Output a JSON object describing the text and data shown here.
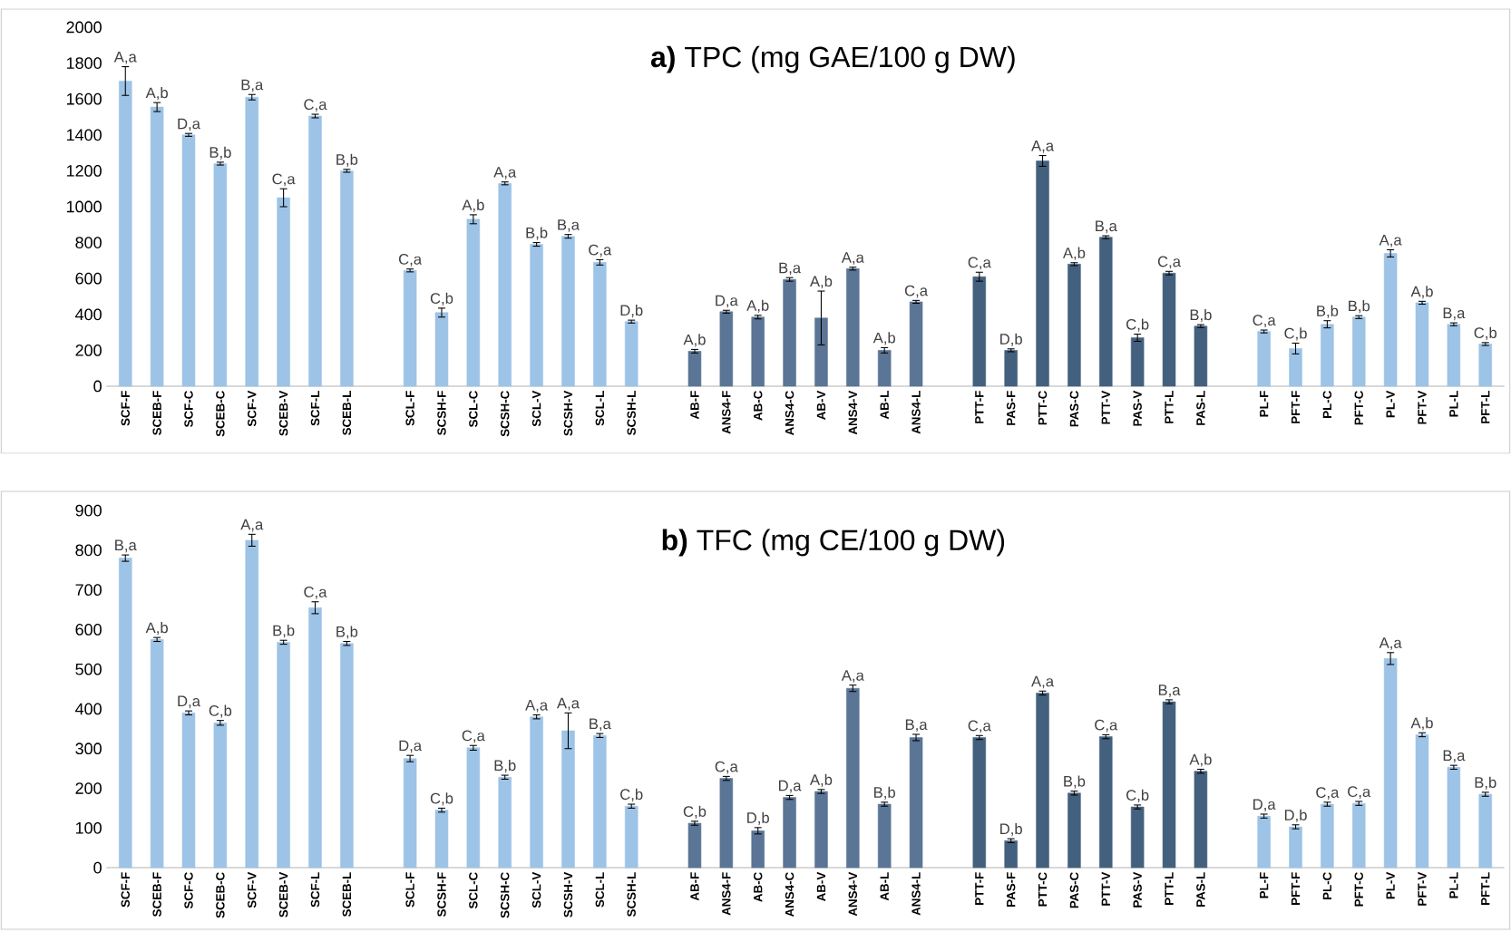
{
  "chart_data": [
    {
      "type": "bar",
      "title": "**a)** TPC (mg GAE/100 g DW)",
      "categories": [
        "SCF-F",
        "SCEB-F",
        "SCF-C",
        "SCEB-C",
        "SCF-V",
        "SCEB-V",
        "SCF-L",
        "SCEB-L",
        null,
        "SCL-F",
        "SCSH-F",
        "SCL-C",
        "SCSH-C",
        "SCL-V",
        "SCSH-V",
        "SCL-L",
        "SCSH-L",
        null,
        "AB-F",
        "ANS4-F",
        "AB-C",
        "ANS4-C",
        "AB-V",
        "ANS4-V",
        "AB-L",
        "ANS4-L",
        null,
        "PTT-F",
        "PAS-F",
        "PTT-C",
        "PAS-C",
        "PTT-V",
        "PAS-V",
        "PTT-L",
        "PAS-L",
        null,
        "PL-F",
        "PFT-F",
        "PL-C",
        "PFT-C",
        "PL-V",
        "PFT-V",
        "PL-L",
        "PFT-L"
      ],
      "values": [
        1700,
        1555,
        1400,
        1240,
        1610,
        1050,
        1505,
        1200,
        null,
        645,
        410,
        930,
        1130,
        790,
        835,
        690,
        360,
        null,
        195,
        415,
        385,
        595,
        380,
        655,
        200,
        470,
        null,
        610,
        200,
        1255,
        680,
        830,
        270,
        630,
        335,
        null,
        305,
        210,
        345,
        385,
        740,
        465,
        345,
        235
      ],
      "errors": [
        80,
        25,
        8,
        8,
        15,
        50,
        10,
        8,
        null,
        8,
        25,
        25,
        8,
        10,
        10,
        15,
        8,
        null,
        10,
        8,
        10,
        10,
        150,
        8,
        15,
        8,
        null,
        25,
        8,
        30,
        8,
        8,
        20,
        10,
        8,
        null,
        8,
        30,
        20,
        8,
        20,
        8,
        8,
        8
      ],
      "value_labels": [
        "A,a",
        "A,b",
        "D,a",
        "B,b",
        "B,a",
        "C,a",
        "C,a",
        "B,b",
        null,
        "C,a",
        "C,b",
        "A,b",
        "A,a",
        "B,b",
        "B,a",
        "C,a",
        "D,b",
        null,
        "A,b",
        "D,a",
        "A,b",
        "B,a",
        "A,b",
        "A,a",
        "A,b",
        "C,a",
        null,
        "C,a",
        "D,b",
        "A,a",
        "A,b",
        "B,a",
        "C,b",
        "C,a",
        "B,b",
        null,
        "C,a",
        "C,b",
        "B,b",
        "B,b",
        "A,a",
        "A,b",
        "B,a",
        "C,b"
      ],
      "colors": [
        "#9dc3e6",
        "#9dc3e6",
        "#9dc3e6",
        "#9dc3e6",
        "#9dc3e6",
        "#9dc3e6",
        "#9dc3e6",
        "#9dc3e6",
        null,
        "#9dc3e6",
        "#9dc3e6",
        "#9dc3e6",
        "#9dc3e6",
        "#9dc3e6",
        "#9dc3e6",
        "#9dc3e6",
        "#9dc3e6",
        null,
        "#5a7595",
        "#5a7595",
        "#5a7595",
        "#5a7595",
        "#5a7595",
        "#5a7595",
        "#5a7595",
        "#5a7595",
        null,
        "#44607f",
        "#44607f",
        "#44607f",
        "#44607f",
        "#44607f",
        "#44607f",
        "#44607f",
        "#44607f",
        null,
        "#9dc3e6",
        "#9dc3e6",
        "#9dc3e6",
        "#9dc3e6",
        "#9dc3e6",
        "#9dc3e6",
        "#9dc3e6",
        "#9dc3e6"
      ],
      "ylim": [
        0,
        2000
      ],
      "yticks": [
        0,
        200,
        400,
        600,
        800,
        1000,
        1200,
        1400,
        1600,
        1800,
        2000
      ]
    },
    {
      "type": "bar",
      "title": "**b)** TFC (mg CE/100 g DW)",
      "categories": [
        "SCF-F",
        "SCEB-F",
        "SCF-C",
        "SCEB-C",
        "SCF-V",
        "SCEB-V",
        "SCF-L",
        "SCEB-L",
        null,
        "SCL-F",
        "SCSH-F",
        "SCL-C",
        "SCSH-C",
        "SCL-V",
        "SCSH-V",
        "SCL-L",
        "SCSH-L",
        null,
        "AB-F",
        "ANS4-F",
        "AB-C",
        "ANS4-C",
        "AB-V",
        "ANS4-V",
        "AB-L",
        "ANS4-L",
        null,
        "PTT-F",
        "PAS-F",
        "PTT-C",
        "PAS-C",
        "PTT-V",
        "PAS-V",
        "PTT-L",
        "PAS-L",
        null,
        "PL-F",
        "PFT-F",
        "PL-C",
        "PFT-C",
        "PL-V",
        "PFT-V",
        "PL-L",
        "PFT-L"
      ],
      "values": [
        780,
        575,
        390,
        365,
        825,
        568,
        655,
        565,
        null,
        275,
        145,
        302,
        228,
        380,
        345,
        333,
        155,
        null,
        112,
        225,
        93,
        177,
        192,
        452,
        160,
        328,
        null,
        328,
        68,
        440,
        188,
        330,
        153,
        418,
        243,
        null,
        130,
        103,
        160,
        162,
        527,
        335,
        253,
        185
      ],
      "errors": [
        8,
        5,
        5,
        6,
        15,
        5,
        15,
        5,
        null,
        8,
        5,
        6,
        5,
        5,
        45,
        5,
        5,
        null,
        5,
        5,
        8,
        5,
        5,
        8,
        5,
        8,
        null,
        5,
        5,
        5,
        5,
        5,
        5,
        5,
        5,
        null,
        5,
        5,
        5,
        5,
        15,
        5,
        5,
        5
      ],
      "value_labels": [
        "B,a",
        "A,b",
        "D,a",
        "C,b",
        "A,a",
        "B,b",
        "C,a",
        "B,b",
        null,
        "D,a",
        "C,b",
        "C,a",
        "B,b",
        "A,a",
        "A,a",
        "B,a",
        "C,b",
        null,
        "C,b",
        "C,a",
        "D,b",
        "D,a",
        "A,b",
        "A,a",
        "B,b",
        "B,a",
        null,
        "C,a",
        "D,b",
        "A,a",
        "B,b",
        "C,a",
        "C,b",
        "B,a",
        "A,b",
        null,
        "D,a",
        "D,b",
        "C,a",
        "C,a",
        "A,a",
        "A,b",
        "B,a",
        "B,b"
      ],
      "colors": [
        "#9dc3e6",
        "#9dc3e6",
        "#9dc3e6",
        "#9dc3e6",
        "#9dc3e6",
        "#9dc3e6",
        "#9dc3e6",
        "#9dc3e6",
        null,
        "#9dc3e6",
        "#9dc3e6",
        "#9dc3e6",
        "#9dc3e6",
        "#9dc3e6",
        "#9dc3e6",
        "#9dc3e6",
        "#9dc3e6",
        null,
        "#5a7595",
        "#5a7595",
        "#5a7595",
        "#5a7595",
        "#5a7595",
        "#5a7595",
        "#5a7595",
        "#5a7595",
        null,
        "#44607f",
        "#44607f",
        "#44607f",
        "#44607f",
        "#44607f",
        "#44607f",
        "#44607f",
        "#44607f",
        null,
        "#9dc3e6",
        "#9dc3e6",
        "#9dc3e6",
        "#9dc3e6",
        "#9dc3e6",
        "#9dc3e6",
        "#9dc3e6",
        "#9dc3e6"
      ],
      "ylim": [
        0,
        900
      ],
      "yticks": [
        0,
        100,
        200,
        300,
        400,
        500,
        600,
        700,
        800,
        900
      ]
    }
  ]
}
